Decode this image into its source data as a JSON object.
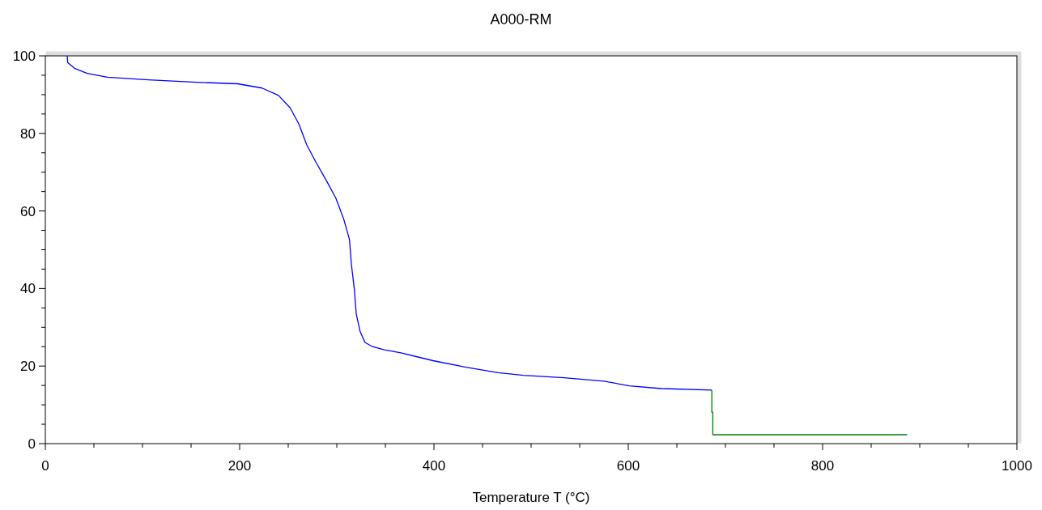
{
  "chart_data": {
    "type": "line",
    "title": "A000-RM",
    "xlabel": "Temperature T (°C)",
    "xlim": [
      0,
      1000
    ],
    "ylim": [
      0,
      100
    ],
    "xticks": [
      0,
      {
        "value": 50,
        "label": null
      },
      {
        "value": 100,
        "label": null
      },
      {
        "value": 150,
        "label": null
      },
      200,
      {
        "value": 250,
        "label": null
      },
      {
        "value": 300,
        "label": null
      },
      {
        "value": 350,
        "label": null
      },
      400,
      {
        "value": 450,
        "label": null
      },
      {
        "value": 500,
        "label": null
      },
      {
        "value": 550,
        "label": null
      },
      600,
      {
        "value": 650,
        "label": null
      },
      {
        "value": 700,
        "label": null
      },
      {
        "value": 750,
        "label": null
      },
      800,
      {
        "value": 850,
        "label": null
      },
      {
        "value": 900,
        "label": null
      },
      {
        "value": 950,
        "label": null
      },
      1000
    ],
    "yticks": [
      0,
      {
        "value": 5,
        "label": null
      },
      {
        "value": 10,
        "label": null
      },
      {
        "value": 15,
        "label": null
      },
      20,
      {
        "value": 25,
        "label": null
      },
      {
        "value": 30,
        "label": null
      },
      {
        "value": 35,
        "label": null
      },
      40,
      {
        "value": 45,
        "label": null
      },
      {
        "value": 50,
        "label": null
      },
      {
        "value": 55,
        "label": null
      },
      60,
      {
        "value": 65,
        "label": null
      },
      {
        "value": 70,
        "label": null
      },
      {
        "value": 75,
        "label": null
      },
      80,
      {
        "value": 85,
        "label": null
      },
      {
        "value": 90,
        "label": null
      },
      {
        "value": 95,
        "label": null
      },
      100
    ],
    "grid": false,
    "series": [
      {
        "color": "#0000ff",
        "x": [
          22.6,
          23,
          30,
          43,
          64,
          106,
          156,
          198,
          223,
          240,
          252,
          261,
          269,
          278,
          290,
          299,
          307,
          313,
          315,
          318,
          320,
          324,
          329,
          336,
          349,
          366,
          399,
          433,
          466,
          492,
          534,
          575,
          601,
          634,
          686
        ],
        "values": [
          100,
          98.3,
          96.8,
          95.5,
          94.5,
          93.8,
          93.2,
          92.8,
          91.7,
          89.8,
          86.6,
          82.4,
          77.1,
          72.8,
          67.5,
          63.3,
          58.0,
          52.7,
          46.3,
          39.9,
          33.5,
          28.9,
          26.1,
          25.1,
          24.2,
          23.4,
          21.4,
          19.7,
          18.3,
          17.6,
          17.0,
          16.1,
          14.9,
          14.2,
          13.8
        ]
      },
      {
        "color": "#008000",
        "x": [
          686,
          686,
          687,
          687,
          887
        ],
        "values": [
          13.8,
          8.1,
          8.1,
          2.3,
          2.3
        ]
      }
    ]
  }
}
